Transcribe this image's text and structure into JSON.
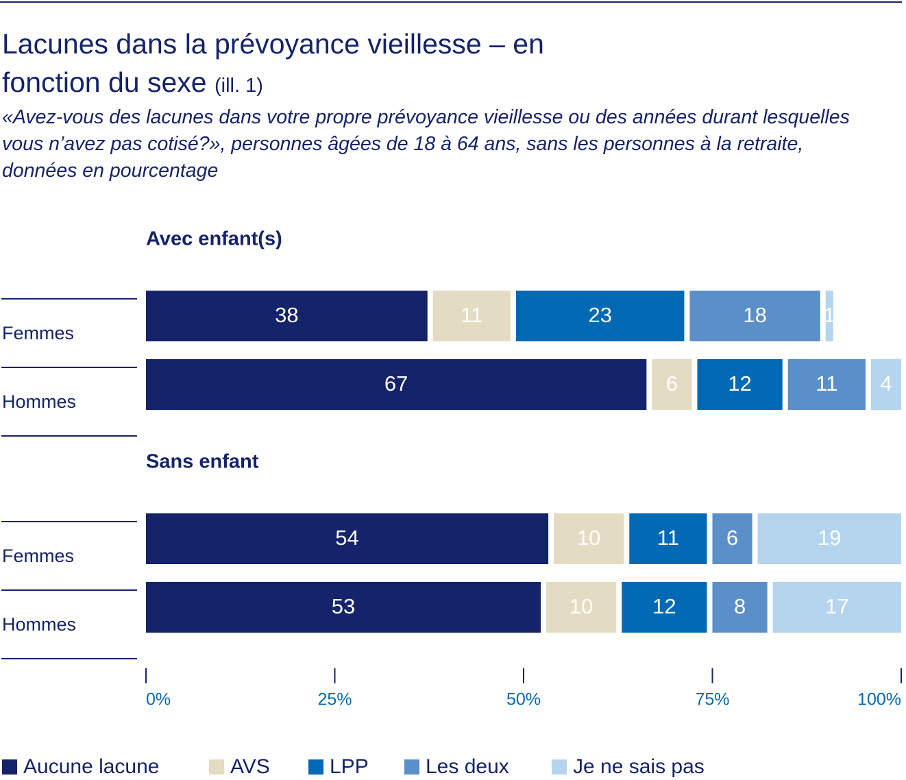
{
  "header": {
    "title": "Lacunes dans la prévoyance vieillesse – en fonction du sexe",
    "title_note": "(ill. 1)",
    "subtitle": "«Avez-vous des lacunes dans votre propre prévoyance vieillesse ou des années durant lesquelles vous n’avez pas cotisé?», personnes âgées de 18 à 64 ans, sans les personnes à la retraite, données en pourcentage"
  },
  "chart_data": {
    "type": "stacked-bar",
    "orientation": "horizontal",
    "panel_titles": [
      "Avec enfant(s)",
      "Sans enfant"
    ],
    "categories": [
      "Femmes",
      "Hommes",
      "Femmes",
      "Hommes"
    ],
    "series": [
      {
        "name": "Aucune lacune",
        "color": "#15236b",
        "values": [
          38,
          67,
          54,
          53
        ]
      },
      {
        "name": "AVS",
        "color": "#e3dcc2",
        "values": [
          11,
          6,
          10,
          10
        ]
      },
      {
        "name": "LPP",
        "color": "#0069b4",
        "values": [
          23,
          12,
          11,
          12
        ]
      },
      {
        "name": "Les deux",
        "color": "#5b8fc9",
        "values": [
          18,
          11,
          6,
          8
        ]
      },
      {
        "name": "Je ne sais pas",
        "color": "#b5d4ee",
        "values": [
          1,
          4,
          19,
          17
        ]
      }
    ],
    "xlim": [
      0,
      100
    ],
    "xticks": [
      {
        "value": 0,
        "label": "0%"
      },
      {
        "value": 25,
        "label": "25%"
      },
      {
        "value": 50,
        "label": "50%"
      },
      {
        "value": 75,
        "label": "75%"
      },
      {
        "value": 100,
        "label": "100%"
      }
    ]
  }
}
